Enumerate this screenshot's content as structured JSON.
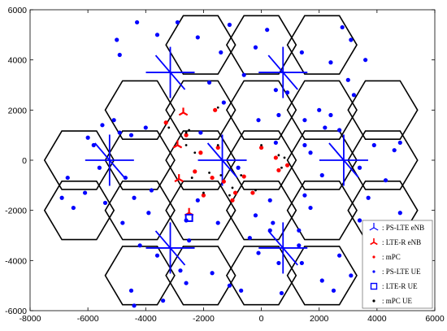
{
  "chart_data": {
    "type": "scatter",
    "xlim": [
      -8000,
      6000
    ],
    "ylim": [
      -6000,
      6000
    ],
    "xticks": [
      -8000,
      -6000,
      -4000,
      -2000,
      0,
      2000,
      4000,
      6000
    ],
    "yticks": [
      -6000,
      -4000,
      -2000,
      0,
      2000,
      4000,
      6000
    ],
    "xtick_labels": [
      "-8000",
      "-6000",
      "-4000",
      "-2000",
      "0",
      "2000",
      "4000",
      "6000"
    ],
    "ytick_labels": [
      "-6000",
      "-4000",
      "-2000",
      "0",
      "2000",
      "4000",
      "6000"
    ],
    "grid": false,
    "legend_position": "bottom-right",
    "hex_cells": {
      "radius": 1200,
      "centers": [
        [
          -2100,
          4600
        ],
        [
          0,
          4600
        ],
        [
          2100,
          4600
        ],
        [
          -4200,
          2000
        ],
        [
          -2100,
          2000
        ],
        [
          0,
          2000
        ],
        [
          2100,
          2000
        ],
        [
          4200,
          2000
        ],
        [
          -6300,
          0
        ],
        [
          -4200,
          0
        ],
        [
          -2100,
          0
        ],
        [
          0,
          0
        ],
        [
          2100,
          0
        ],
        [
          4200,
          0
        ],
        [
          -6300,
          -2000
        ],
        [
          -4200,
          -2000
        ],
        [
          -2100,
          -2000
        ],
        [
          0,
          -2000
        ],
        [
          2100,
          -2000
        ],
        [
          4200,
          -2000
        ],
        [
          -4200,
          -4600
        ],
        [
          -2100,
          -4600
        ],
        [
          0,
          -4600
        ],
        [
          2100,
          -4600
        ]
      ]
    },
    "series": [
      {
        "name": ": PS-LTE eNB",
        "marker": "tri-star",
        "color": "#0000ff",
        "points": [
          [
            -3150,
            3500
          ],
          [
            750,
            3500
          ],
          [
            -5250,
            0
          ],
          [
            -1350,
            0
          ],
          [
            2850,
            0
          ],
          [
            -3150,
            -3500
          ],
          [
            750,
            -3500
          ]
        ]
      },
      {
        "name": ": LTE-R eNB",
        "marker": "small-tri-star",
        "color": "#ff0000",
        "points": [
          [
            -2700,
            1900
          ],
          [
            -2900,
            600
          ],
          [
            -2850,
            -750
          ],
          [
            -2500,
            -2100
          ]
        ]
      },
      {
        "name": ": mPC",
        "marker": "dot",
        "color": "#ff0000",
        "points": [
          [
            -3300,
            1500
          ],
          [
            -2600,
            1000
          ],
          [
            -1600,
            2000
          ],
          [
            -1500,
            500
          ],
          [
            -2100,
            300
          ],
          [
            -1700,
            -700
          ],
          [
            -1300,
            -850
          ],
          [
            -2300,
            -450
          ],
          [
            -1000,
            -1600
          ],
          [
            -600,
            -650
          ],
          [
            -900,
            -1300
          ],
          [
            0,
            500
          ],
          [
            500,
            100
          ],
          [
            600,
            -400
          ],
          [
            900,
            -200
          ],
          [
            -300,
            -1300
          ],
          [
            -2000,
            -1400
          ]
        ]
      },
      {
        "name": ": PS-LTE UE",
        "marker": "dot",
        "color": "#0000ff",
        "points": [
          [
            -5500,
            1400
          ],
          [
            -6000,
            900
          ],
          [
            -5100,
            1600
          ],
          [
            -4000,
            1300
          ],
          [
            -4900,
            1100
          ],
          [
            -4500,
            1000
          ],
          [
            -5800,
            600
          ],
          [
            -5600,
            -300
          ],
          [
            -6100,
            -1300
          ],
          [
            -6500,
            -1900
          ],
          [
            -6900,
            -1500
          ],
          [
            -6700,
            -700
          ],
          [
            -5400,
            -1700
          ],
          [
            -4700,
            -700
          ],
          [
            -4400,
            -1500
          ],
          [
            -3800,
            -1200
          ],
          [
            -4800,
            -2500
          ],
          [
            -3900,
            -2100
          ],
          [
            -4200,
            -3400
          ],
          [
            -3600,
            -3800
          ],
          [
            -4500,
            -5200
          ],
          [
            -4400,
            -5800
          ],
          [
            -3400,
            -5600
          ],
          [
            -2800,
            -4400
          ],
          [
            -2600,
            -4900
          ],
          [
            -1700,
            -4500
          ],
          [
            -1100,
            -5000
          ],
          [
            -700,
            -5200
          ],
          [
            -400,
            -3100
          ],
          [
            -100,
            -3700
          ],
          [
            600,
            -4100
          ],
          [
            1300,
            -3400
          ],
          [
            700,
            -5300
          ],
          [
            1400,
            -4100
          ],
          [
            2100,
            -4800
          ],
          [
            2500,
            -5200
          ],
          [
            3100,
            -4600
          ],
          [
            2700,
            -3800
          ],
          [
            3800,
            -3300
          ],
          [
            3400,
            -2400
          ],
          [
            4000,
            -2500
          ],
          [
            4800,
            -2100
          ],
          [
            3700,
            -1500
          ],
          [
            4300,
            -800
          ],
          [
            3400,
            -300
          ],
          [
            3900,
            600
          ],
          [
            4600,
            400
          ],
          [
            4800,
            700
          ],
          [
            2700,
            1200
          ],
          [
            2200,
            1300
          ],
          [
            2400,
            1800
          ],
          [
            3200,
            2600
          ],
          [
            3000,
            3200
          ],
          [
            3600,
            4000
          ],
          [
            3100,
            4800
          ],
          [
            2800,
            5300
          ],
          [
            2400,
            3900
          ],
          [
            1400,
            4300
          ],
          [
            200,
            5200
          ],
          [
            -200,
            4500
          ],
          [
            -1400,
            4300
          ],
          [
            -1100,
            5400
          ],
          [
            -2200,
            4900
          ],
          [
            -2900,
            5500
          ],
          [
            -3600,
            5000
          ],
          [
            -5000,
            4800
          ],
          [
            -4900,
            4200
          ],
          [
            -4300,
            5500
          ],
          [
            -1800,
            3100
          ],
          [
            -1300,
            2300
          ],
          [
            -2100,
            1100
          ],
          [
            -600,
            3400
          ],
          [
            500,
            2800
          ],
          [
            900,
            2700
          ],
          [
            1500,
            1600
          ],
          [
            2000,
            2000
          ],
          [
            600,
            1800
          ],
          [
            -100,
            1600
          ],
          [
            1500,
            600
          ],
          [
            2100,
            -600
          ],
          [
            1700,
            300
          ],
          [
            1500,
            -1400
          ],
          [
            300,
            -1600
          ],
          [
            1700,
            -1900
          ],
          [
            400,
            -2500
          ],
          [
            300,
            -2800
          ],
          [
            -200,
            -2200
          ],
          [
            1300,
            -2800
          ],
          [
            -1500,
            -2500
          ],
          [
            -2200,
            -1600
          ],
          [
            -2500,
            -3200
          ],
          [
            -2600,
            -2400
          ],
          [
            -800,
            -300
          ],
          [
            500,
            700
          ]
        ]
      },
      {
        "name": ": LTE-R UE",
        "marker": "square",
        "color": "#0000ff",
        "points": [
          [
            -2500,
            -2300
          ]
        ]
      },
      {
        "name": ": mPC UE",
        "marker": "dot",
        "color": "#000000",
        "points": [
          [
            -2500,
            1200
          ],
          [
            -3200,
            1300
          ],
          [
            -2600,
            1100
          ],
          [
            -1500,
            2100
          ],
          [
            -1500,
            600
          ],
          [
            -2300,
            300
          ],
          [
            -1800,
            -500
          ],
          [
            -1400,
            -600
          ],
          [
            -1100,
            -1400
          ],
          [
            -700,
            -600
          ],
          [
            -1000,
            -1100
          ],
          [
            -2400,
            -700
          ],
          [
            -2000,
            -1300
          ],
          [
            0,
            600
          ],
          [
            600,
            200
          ],
          [
            700,
            -300
          ],
          [
            800,
            100
          ],
          [
            -200,
            -1200
          ],
          [
            -2600,
            600
          ]
        ]
      }
    ]
  }
}
